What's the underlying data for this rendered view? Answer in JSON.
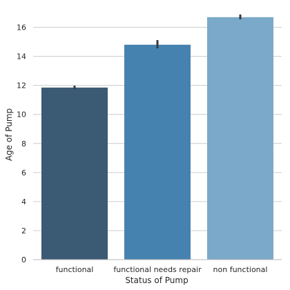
{
  "chart_data": {
    "type": "bar",
    "categories": [
      "functional",
      "functional needs repair",
      "non functional"
    ],
    "values": [
      11.85,
      14.8,
      16.7
    ],
    "error_bars": [
      {
        "low": 11.75,
        "high": 11.98
      },
      {
        "low": 14.55,
        "high": 15.12
      },
      {
        "low": 16.55,
        "high": 16.88
      }
    ],
    "colors": [
      "#3b5a73",
      "#4682b0",
      "#7ba9c9"
    ],
    "xlabel": "Status of Pump",
    "ylabel": "Age of Pump",
    "ylim": [
      0,
      17.5
    ],
    "yticks": [
      0,
      2,
      4,
      6,
      8,
      10,
      12,
      14,
      16
    ],
    "grid": "horizontal",
    "background": "#ffffff",
    "grid_color": "#cccccc",
    "text_color": "#262626",
    "errorbar_color": "#3a3a3a"
  }
}
